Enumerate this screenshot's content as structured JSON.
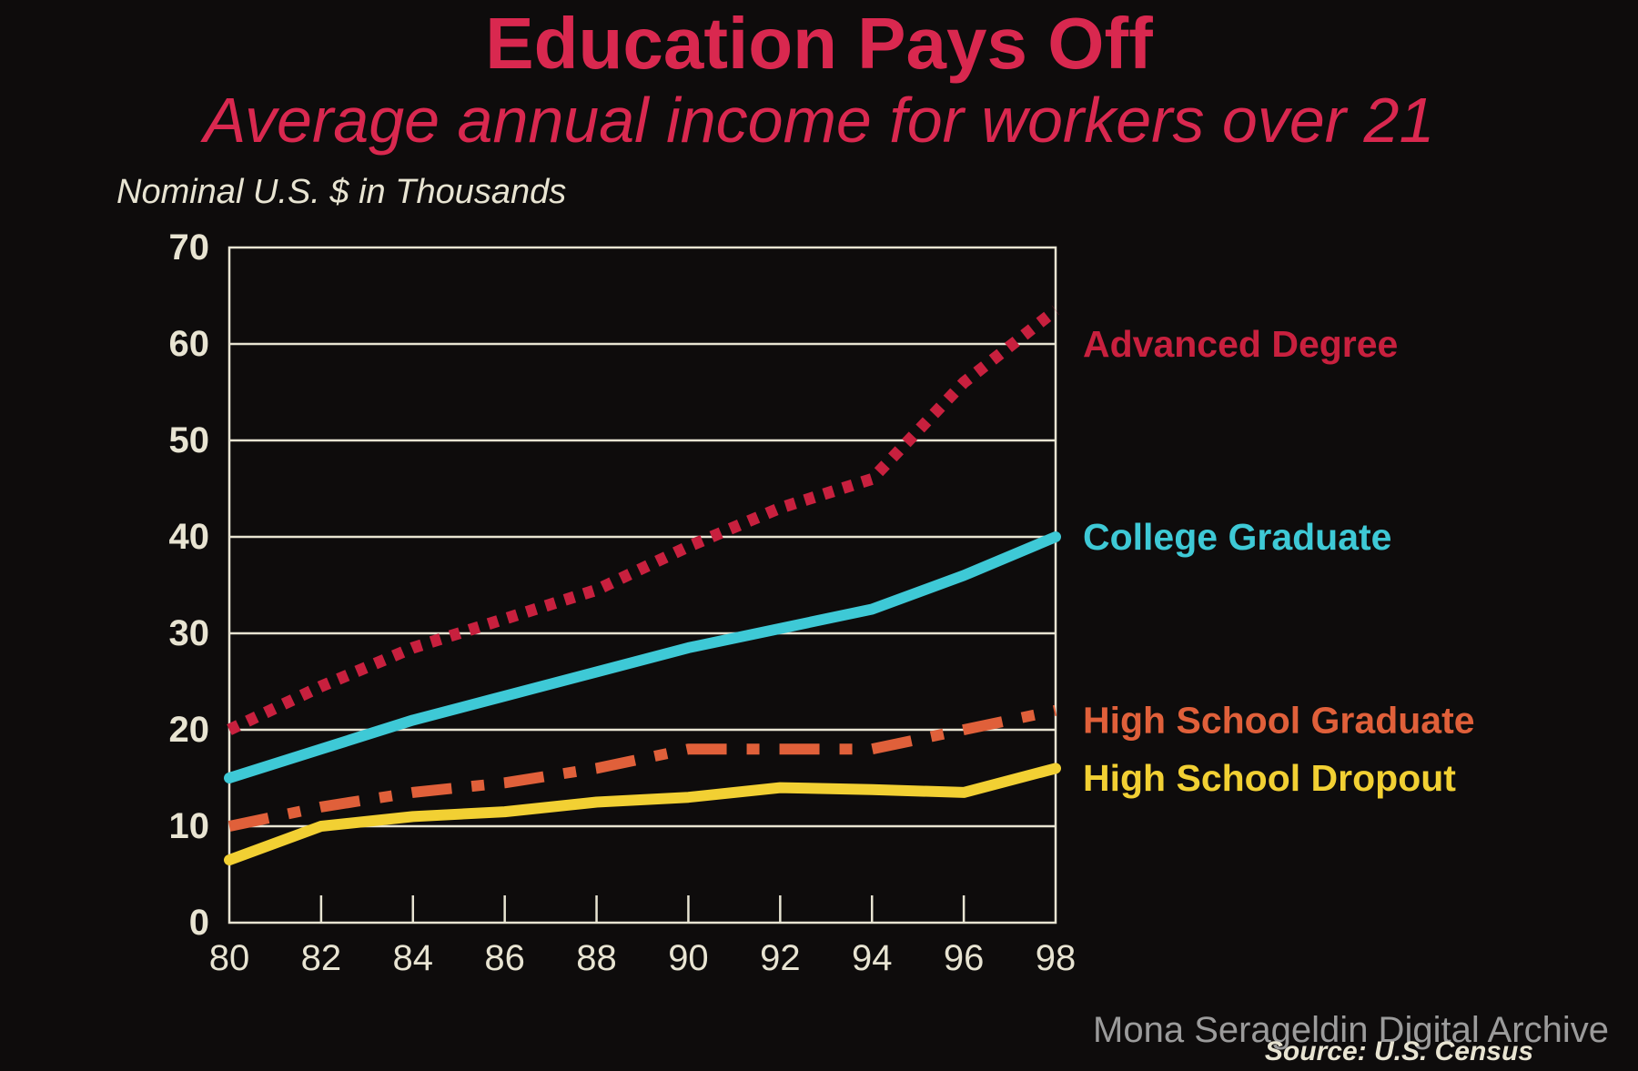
{
  "watermark": "Mona Serageldin Digital Archive",
  "chart_data": {
    "type": "line",
    "title": "Education Pays Off",
    "subtitle": "Average annual income for workers over 21",
    "ylabel": "Nominal U.S. $ in Thousands",
    "xlabel": "",
    "source": "Source: U.S. Census",
    "xlim": [
      80,
      98
    ],
    "ylim": [
      0,
      70
    ],
    "x_ticks": [
      "80",
      "82",
      "84",
      "86",
      "88",
      "90",
      "92",
      "94",
      "96",
      "98"
    ],
    "y_ticks": [
      "0",
      "10",
      "20",
      "30",
      "40",
      "50",
      "60",
      "70"
    ],
    "grid": true,
    "series": [
      {
        "name": "Advanced Degree",
        "color": "#c8203e",
        "style": "dotted",
        "x": [
          80,
          82,
          84,
          86,
          88,
          90,
          92,
          94,
          96,
          98
        ],
        "values": [
          20,
          24.5,
          28.5,
          31.5,
          34.5,
          39,
          43,
          46,
          56,
          63.5
        ]
      },
      {
        "name": "College Graduate",
        "color": "#3ec9d6",
        "style": "solid",
        "x": [
          80,
          82,
          84,
          86,
          88,
          90,
          92,
          94,
          96,
          98
        ],
        "values": [
          15,
          18,
          21,
          23.5,
          26,
          28.5,
          30.5,
          32.5,
          36,
          40
        ]
      },
      {
        "name": "High School Graduate",
        "color": "#e0603a",
        "style": "dashdot",
        "x": [
          80,
          82,
          84,
          86,
          88,
          90,
          92,
          94,
          96,
          98
        ],
        "values": [
          10,
          12,
          13.5,
          14.5,
          16,
          18,
          18,
          18,
          20,
          22
        ]
      },
      {
        "name": "High School Dropout",
        "color": "#f2d033",
        "style": "solid",
        "x": [
          80,
          82,
          84,
          86,
          88,
          90,
          92,
          94,
          96,
          98
        ],
        "values": [
          6.5,
          10,
          11,
          11.5,
          12.5,
          13,
          14,
          13.8,
          13.5,
          16
        ]
      }
    ]
  }
}
